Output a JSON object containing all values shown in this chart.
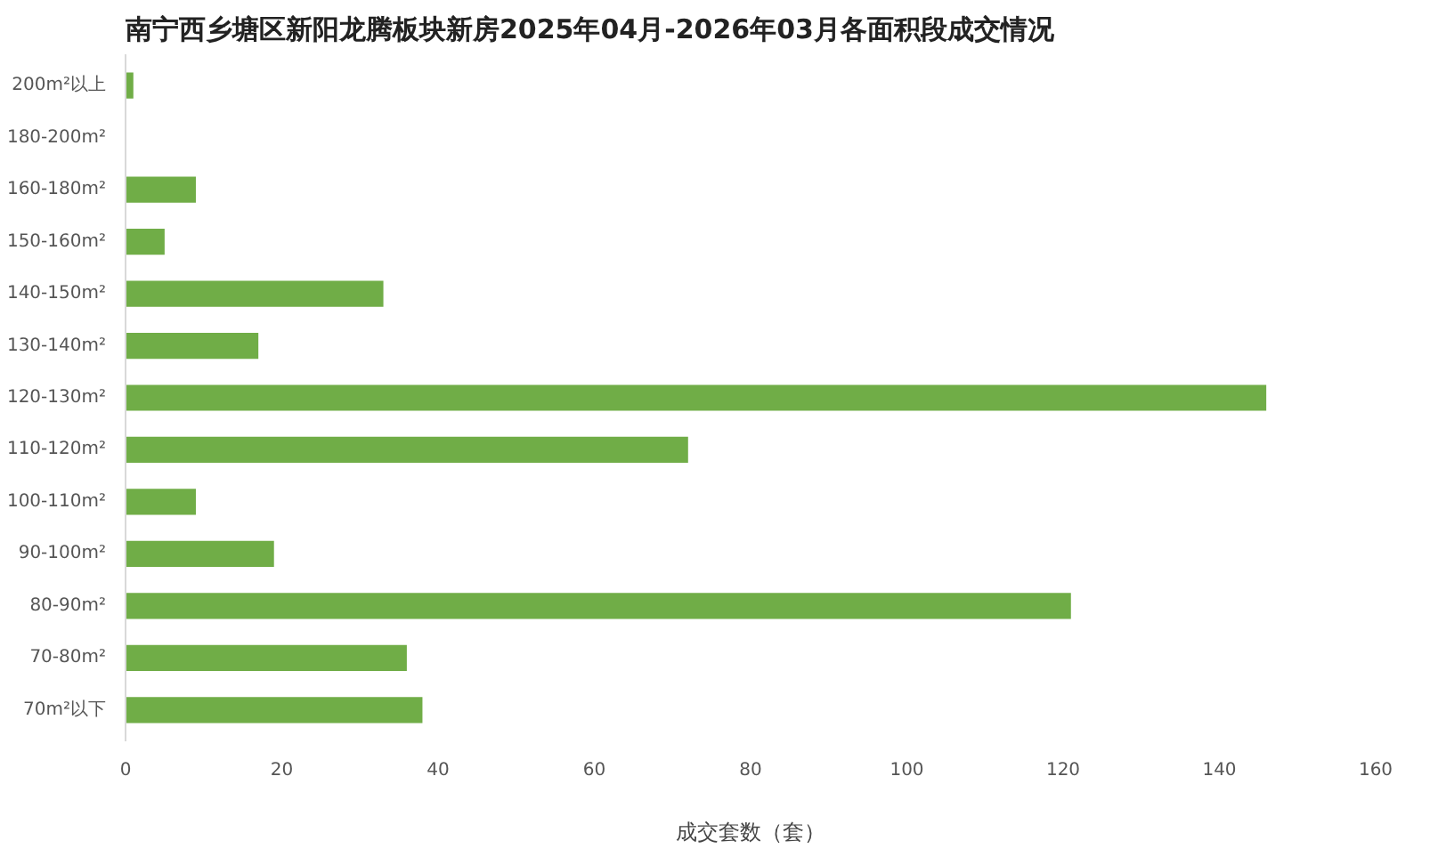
{
  "chart_data": {
    "type": "bar",
    "orientation": "horizontal",
    "title": "南宁西乡塘区新阳龙腾板块新房2025年04月-2026年03月各面积段成交情况",
    "xlabel": "成交套数（套）",
    "categories": [
      "200m²以上",
      "180-200m²",
      "160-180m²",
      "150-160m²",
      "140-150m²",
      "130-140m²",
      "120-130m²",
      "110-120m²",
      "100-110m²",
      "90-100m²",
      "80-90m²",
      "70-80m²",
      "70m²以下"
    ],
    "values": [
      1,
      0,
      9,
      5,
      33,
      17,
      146,
      72,
      9,
      19,
      121,
      36,
      38
    ],
    "color": "#70ad47",
    "xlim": [
      0,
      160
    ],
    "xticks": [
      0,
      20,
      40,
      60,
      80,
      100,
      120,
      140,
      160
    ]
  }
}
